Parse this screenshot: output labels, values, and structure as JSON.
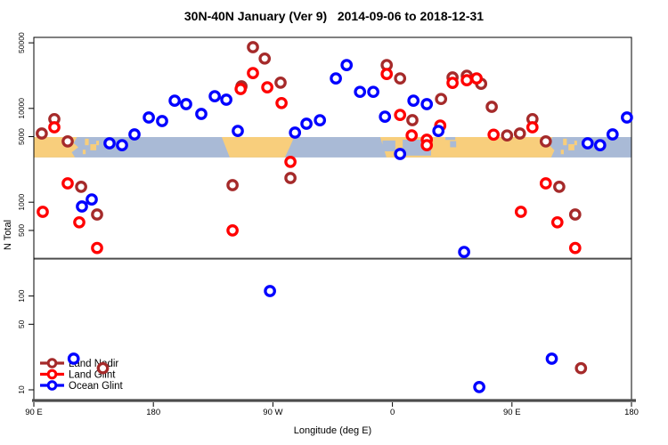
{
  "title": "30N-40N January (Ver 9)   2014-09-06 to 2018-12-31",
  "chart_data": {
    "type": "scatter",
    "title": "30N-40N January (Ver 9)   2014-09-06 to 2018-12-31",
    "xlabel": "Longitude (deg E)",
    "ylabel": "N Total",
    "point_format": "[longitude_axis_position_degE_90_to_540, n_total]",
    "x_axis": {
      "min": 90,
      "max": 540,
      "wrapped": true,
      "ticks": [
        {
          "lon": 90,
          "label": "90 E"
        },
        {
          "lon": 180,
          "label": "180"
        },
        {
          "lon": 270,
          "label": "90 W"
        },
        {
          "lon": 360,
          "label": "0"
        },
        {
          "lon": 450,
          "label": "90 E"
        },
        {
          "lon": 540,
          "label": "180"
        }
      ]
    },
    "y_axis": {
      "scale": "log10",
      "min": 8,
      "max": 58000,
      "ticks": [
        {
          "v": 50000,
          "label": "50000"
        },
        {
          "v": 10000,
          "label": "10000"
        },
        {
          "v": 5000,
          "label": "5000"
        },
        {
          "v": 1000,
          "label": "1000"
        },
        {
          "v": 500,
          "label": "500"
        },
        {
          "v": 100,
          "label": "100"
        },
        {
          "v": 50,
          "label": "50"
        },
        {
          "v": 10,
          "label": "10"
        }
      ]
    },
    "reference_line_n": 250,
    "series": [
      {
        "name": "Land Nadir",
        "color": "#A52A2A",
        "points": [
          [
            96,
            5400
          ],
          [
            105.4,
            7700
          ],
          [
            115.5,
            4450
          ],
          [
            125.6,
            1460
          ],
          [
            137.6,
            740
          ],
          [
            142,
            17
          ],
          [
            239.6,
            1520
          ],
          [
            246.3,
            17200
          ],
          [
            255,
            45000
          ],
          [
            263.8,
            34000
          ],
          [
            275.8,
            18800
          ],
          [
            283.2,
            1810
          ],
          [
            355.7,
            29000
          ],
          [
            365.8,
            20900
          ],
          [
            375,
            7500
          ],
          [
            396.6,
            12600
          ],
          [
            405.3,
            21400
          ],
          [
            416,
            22300
          ],
          [
            426.8,
            18300
          ],
          [
            434.8,
            10400
          ],
          [
            446.3,
            5150
          ],
          [
            456,
            5400
          ],
          [
            465.4,
            7700
          ],
          [
            475.5,
            4450
          ],
          [
            485.6,
            1460
          ],
          [
            497.6,
            740
          ],
          [
            502,
            17
          ]
        ]
      },
      {
        "name": "Land Glint",
        "color": "#FF0000",
        "points": [
          [
            96.7,
            790
          ],
          [
            105.4,
            6290
          ],
          [
            115.5,
            1590
          ],
          [
            124.2,
            610
          ],
          [
            137.6,
            325
          ],
          [
            239.6,
            500
          ],
          [
            245.7,
            16100
          ],
          [
            255,
            23800
          ],
          [
            265.8,
            16800
          ],
          [
            276.5,
            11400
          ],
          [
            283.2,
            2690
          ],
          [
            355.7,
            23300
          ],
          [
            365.8,
            8530
          ],
          [
            374.5,
            5160
          ],
          [
            385.9,
            4630
          ],
          [
            385.9,
            4060
          ],
          [
            396,
            6560
          ],
          [
            405.3,
            18700
          ],
          [
            416,
            20000
          ],
          [
            423.4,
            20900
          ],
          [
            436.2,
            5250
          ],
          [
            456.7,
            790
          ],
          [
            465.4,
            6290
          ],
          [
            475.5,
            1590
          ],
          [
            484.2,
            610
          ],
          [
            497.6,
            325
          ]
        ]
      },
      {
        "name": "Ocean Glint",
        "color": "#0000FF",
        "points": [
          [
            120,
            21.5
          ],
          [
            126.2,
            900
          ],
          [
            133.6,
            1070
          ],
          [
            147,
            4250
          ],
          [
            156.4,
            4060
          ],
          [
            165.8,
            5280
          ],
          [
            176.6,
            8000
          ],
          [
            186.6,
            7330
          ],
          [
            196,
            12100
          ],
          [
            204.7,
            11100
          ],
          [
            216.1,
            8730
          ],
          [
            226.2,
            13500
          ],
          [
            234.9,
            12400
          ],
          [
            243.6,
            5760
          ],
          [
            267.8,
            113
          ],
          [
            286.6,
            5520
          ],
          [
            295.3,
            6870
          ],
          [
            305.4,
            7480
          ],
          [
            317.4,
            20900
          ],
          [
            325.5,
            29000
          ],
          [
            335.6,
            15000
          ],
          [
            345.6,
            15000
          ],
          [
            354.4,
            8170
          ],
          [
            365.8,
            3270
          ],
          [
            375.8,
            12100
          ],
          [
            385.9,
            11100
          ],
          [
            394.6,
            5760
          ],
          [
            414,
            295
          ],
          [
            425.4,
            10.7
          ],
          [
            480,
            21.5
          ],
          [
            507,
            4250
          ],
          [
            516.4,
            4060
          ],
          [
            525.8,
            5280
          ],
          [
            536.6,
            8000
          ]
        ]
      }
    ],
    "map_band": {
      "description": "30N-40N world map strip",
      "n_top": 4950,
      "n_bottom": 3000,
      "ocean_color": "#A9BAD6",
      "land_color": "#F8CE7C",
      "land_polys": [
        [
          [
            90,
            0
          ],
          [
            122.5,
            0
          ],
          [
            120,
            0.3
          ],
          [
            123.5,
            0.5
          ],
          [
            118.5,
            0.75
          ],
          [
            121,
            1
          ],
          [
            90,
            1
          ]
        ],
        [
          [
            231.5,
            0
          ],
          [
            286,
            0
          ],
          [
            283,
            0.45
          ],
          [
            279,
            1
          ],
          [
            237.5,
            1
          ]
        ],
        [
          [
            350.8,
            0
          ],
          [
            480.5,
            0
          ],
          [
            477.5,
            0.35
          ],
          [
            482,
            0.65
          ],
          [
            479.5,
            1
          ],
          [
            355.5,
            1
          ]
        ]
      ],
      "island_rects": [
        [
          128.5,
          0.08,
          2.8,
          0.32
        ],
        [
          132.5,
          0.35,
          4.5,
          0.3
        ],
        [
          126.8,
          0.62,
          2.2,
          0.22
        ],
        [
          137,
          0.18,
          2,
          0.22
        ],
        [
          488.5,
          0.08,
          2.8,
          0.32
        ],
        [
          492.5,
          0.35,
          4.5,
          0.3
        ],
        [
          486.8,
          0.62,
          2.2,
          0.22
        ],
        [
          497,
          0.18,
          2,
          0.22
        ]
      ],
      "sea_rects": [
        [
          352.5,
          0.17,
          9.7,
          0.53
        ],
        [
          367.7,
          0.13,
          21.4,
          0.78
        ],
        [
          399.9,
          0,
          7.4,
          0.14
        ],
        [
          403.4,
          0.2,
          4.6,
          0.3
        ]
      ]
    },
    "legend": {
      "position": "bottom-left",
      "entries": [
        {
          "label": "Land Nadir",
          "color": "#A52A2A"
        },
        {
          "label": "Land Glint",
          "color": "#FF0000"
        },
        {
          "label": "Ocean Glint",
          "color": "#0000FF"
        }
      ]
    }
  }
}
